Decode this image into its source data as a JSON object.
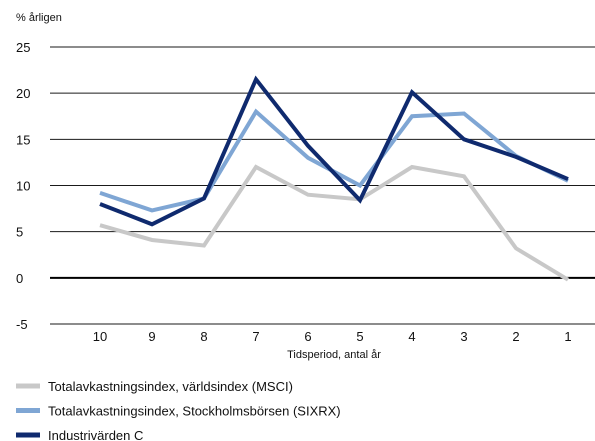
{
  "chart_data": {
    "type": "line",
    "ylabel": "% årligen",
    "xlabel": "Tidsperiod, antal år",
    "categories": [
      "10",
      "9",
      "8",
      "7",
      "6",
      "5",
      "4",
      "3",
      "2",
      "1"
    ],
    "ylim": [
      -5,
      25
    ],
    "yticks": [
      -5,
      0,
      5,
      10,
      15,
      20,
      25
    ],
    "grid": true,
    "legend": "bottom",
    "series": [
      {
        "name": "Totalavkastningsindex, världsindex (MSCI)",
        "color": "#c8c8c8",
        "values": [
          5.7,
          4.1,
          3.5,
          12.0,
          9.0,
          8.5,
          12.0,
          11.0,
          3.2,
          -0.2
        ]
      },
      {
        "name": "Totalavkastningsindex, Stockholmsbörsen (SIXRX)",
        "color": "#7fa6d4",
        "values": [
          9.2,
          7.3,
          8.6,
          18.0,
          13.0,
          10.0,
          17.5,
          17.8,
          13.2,
          10.5
        ]
      },
      {
        "name": "Industrivärden C",
        "color": "#0f2a6e",
        "values": [
          8.0,
          5.8,
          8.6,
          21.5,
          14.3,
          8.4,
          20.1,
          15.0,
          13.1,
          10.7
        ]
      }
    ]
  }
}
